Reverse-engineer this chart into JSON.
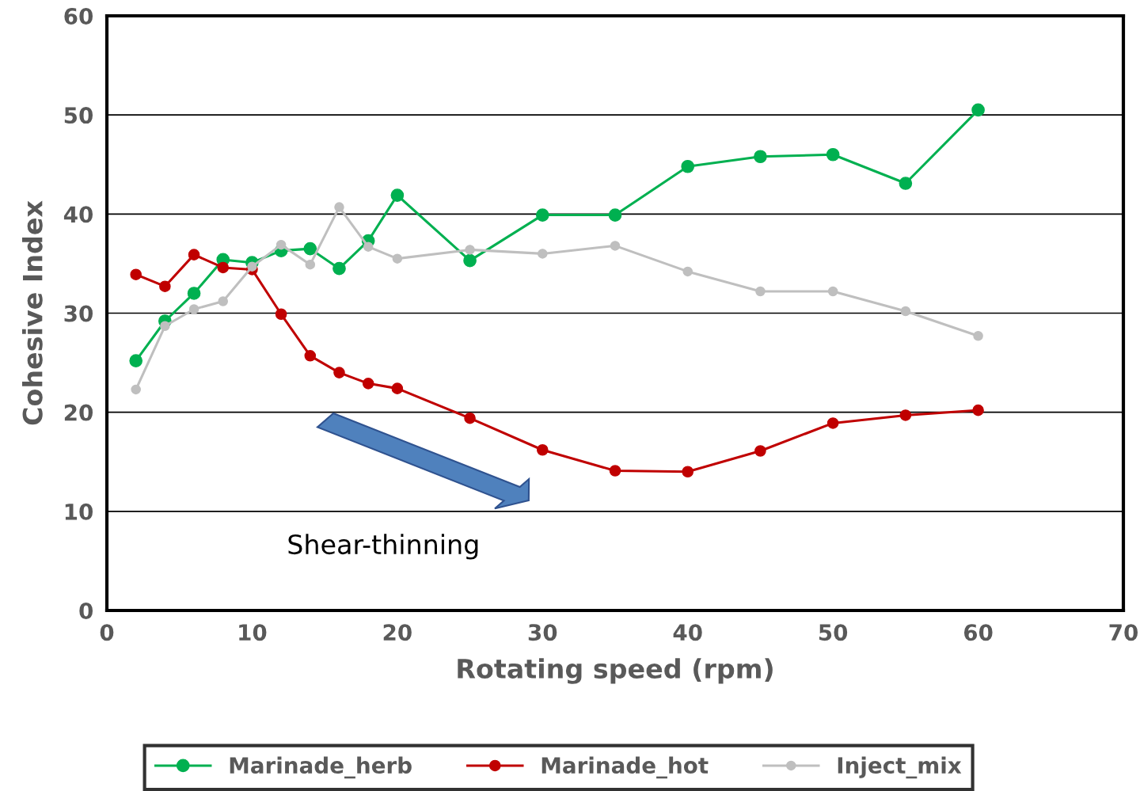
{
  "chart_data": {
    "type": "line",
    "xlabel": "Rotating speed (rpm)",
    "ylabel": "Cohesive Index",
    "x": [
      2,
      4,
      6,
      8,
      10,
      12,
      14,
      16,
      18,
      20,
      25,
      30,
      35,
      40,
      45,
      50,
      55,
      60
    ],
    "series": [
      {
        "name": "Marinade_herb",
        "color": "#00b050",
        "values": [
          25.2,
          29.2,
          32.0,
          35.4,
          35.1,
          36.3,
          36.5,
          34.5,
          37.3,
          41.9,
          35.3,
          39.9,
          39.9,
          44.8,
          45.8,
          46.0,
          43.1,
          50.5
        ]
      },
      {
        "name": "Marinade_hot",
        "color": "#c00000",
        "values": [
          33.9,
          32.7,
          35.9,
          34.6,
          34.4,
          29.9,
          25.7,
          24.0,
          22.9,
          22.4,
          19.4,
          16.2,
          14.1,
          14.0,
          16.1,
          18.9,
          19.7,
          20.2
        ]
      },
      {
        "name": "Inject_mix",
        "color": "#bfbfbf",
        "values": [
          22.3,
          28.7,
          30.4,
          31.2,
          34.7,
          36.9,
          34.9,
          40.7,
          36.7,
          35.5,
          36.4,
          36.0,
          36.8,
          34.2,
          32.2,
          32.2,
          30.2,
          27.7
        ]
      }
    ],
    "xlim": [
      0,
      70
    ],
    "xticks": [
      0,
      10,
      20,
      30,
      40,
      50,
      60,
      70
    ],
    "ylim": [
      0,
      60
    ],
    "yticks": [
      0,
      10,
      20,
      30,
      40,
      50,
      60
    ],
    "grid": "y",
    "legend": "bottom",
    "marker": "circle",
    "line_style": "solid",
    "annotations": [
      "Shear-thinning"
    ]
  }
}
